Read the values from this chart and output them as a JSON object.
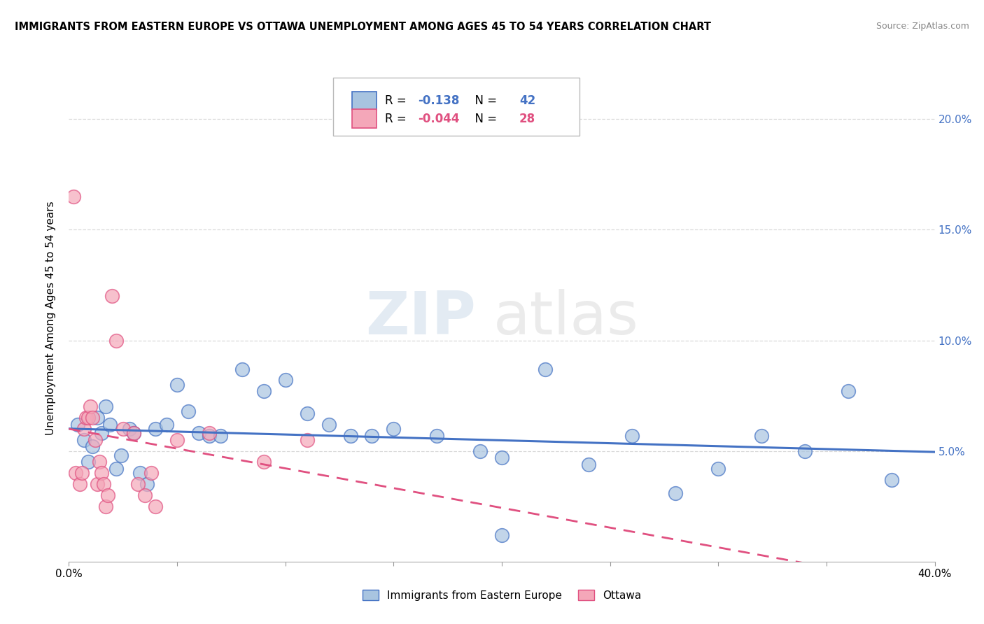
{
  "title": "IMMIGRANTS FROM EASTERN EUROPE VS OTTAWA UNEMPLOYMENT AMONG AGES 45 TO 54 YEARS CORRELATION CHART",
  "source": "Source: ZipAtlas.com",
  "ylabel": "Unemployment Among Ages 45 to 54 years",
  "r_blue": -0.138,
  "n_blue": 42,
  "r_pink": -0.044,
  "n_pink": 28,
  "legend_label_blue": "Immigrants from Eastern Europe",
  "legend_label_pink": "Ottawa",
  "blue_color": "#a8c4e0",
  "blue_line_color": "#4472c4",
  "pink_color": "#f4a7b9",
  "pink_line_color": "#e05080",
  "right_axis_color": "#4472c4",
  "xlim": [
    0.0,
    0.4
  ],
  "ylim": [
    0.0,
    0.22
  ],
  "yticks": [
    0.05,
    0.1,
    0.15,
    0.2
  ],
  "ytick_labels": [
    "5.0%",
    "10.0%",
    "15.0%",
    "20.0%"
  ],
  "blue_x": [
    0.004,
    0.007,
    0.009,
    0.011,
    0.013,
    0.015,
    0.017,
    0.019,
    0.022,
    0.024,
    0.028,
    0.03,
    0.033,
    0.036,
    0.04,
    0.045,
    0.05,
    0.055,
    0.06,
    0.065,
    0.07,
    0.08,
    0.09,
    0.1,
    0.11,
    0.12,
    0.13,
    0.14,
    0.15,
    0.17,
    0.19,
    0.2,
    0.22,
    0.24,
    0.26,
    0.28,
    0.3,
    0.32,
    0.34,
    0.36,
    0.38,
    0.2
  ],
  "blue_y": [
    0.062,
    0.055,
    0.045,
    0.052,
    0.065,
    0.058,
    0.07,
    0.062,
    0.042,
    0.048,
    0.06,
    0.058,
    0.04,
    0.035,
    0.06,
    0.062,
    0.08,
    0.068,
    0.058,
    0.057,
    0.057,
    0.087,
    0.077,
    0.082,
    0.067,
    0.062,
    0.057,
    0.057,
    0.06,
    0.057,
    0.05,
    0.047,
    0.087,
    0.044,
    0.057,
    0.031,
    0.042,
    0.057,
    0.05,
    0.077,
    0.037,
    0.012
  ],
  "pink_x": [
    0.002,
    0.003,
    0.005,
    0.006,
    0.007,
    0.008,
    0.009,
    0.01,
    0.011,
    0.012,
    0.013,
    0.014,
    0.015,
    0.016,
    0.017,
    0.018,
    0.02,
    0.022,
    0.025,
    0.03,
    0.032,
    0.035,
    0.038,
    0.04,
    0.05,
    0.065,
    0.09,
    0.11
  ],
  "pink_y": [
    0.165,
    0.04,
    0.035,
    0.04,
    0.06,
    0.065,
    0.065,
    0.07,
    0.065,
    0.055,
    0.035,
    0.045,
    0.04,
    0.035,
    0.025,
    0.03,
    0.12,
    0.1,
    0.06,
    0.058,
    0.035,
    0.03,
    0.04,
    0.025,
    0.055,
    0.058,
    0.045,
    0.055
  ],
  "watermark_zip": "ZIP",
  "watermark_atlas": "atlas",
  "grid_color": "#d8d8d8"
}
